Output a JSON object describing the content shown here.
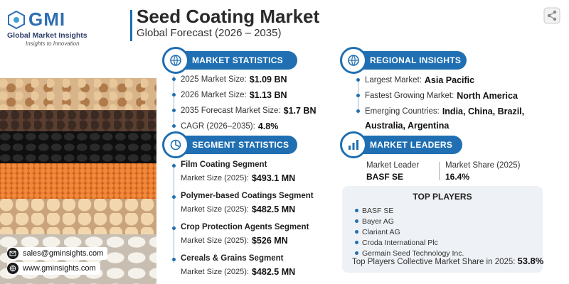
{
  "header": {
    "logo_text": "GMI",
    "company": "Global Market Insights",
    "tagline": "Insights to Innovation",
    "title": "Seed Coating Market",
    "subtitle": "Global Forecast (2026 – 2035)"
  },
  "market_statistics": {
    "heading": "MARKET STATISTICS",
    "rows": [
      {
        "label": "2025 Market Size:",
        "value": "$1.09 BN"
      },
      {
        "label": "2026 Market Size:",
        "value": "$1.13 BN"
      },
      {
        "label": "2035 Forecast Market Size:",
        "value": "$1.7 BN"
      },
      {
        "label": "CAGR (2026–2035):",
        "value": "4.8%"
      }
    ]
  },
  "regional_insights": {
    "heading": "REGIONAL INSIGHTS",
    "largest_label": "Largest Market:",
    "largest_value": "Asia Pacific",
    "fastest_label": "Fastest Growing Market:",
    "fastest_value": "North America",
    "emerging_label": "Emerging Countries:",
    "emerging_value_1": "India, China, Brazil,",
    "emerging_value_2": "Australia, Argentina"
  },
  "segment_statistics": {
    "heading": "SEGMENT STATISTICS",
    "items": [
      {
        "name": "Film Coating Segment",
        "label": "Market Size (2025):",
        "value": "$493.1 MN"
      },
      {
        "name": "Polymer-based Coatings Segment",
        "label": "Market Size (2025):",
        "value": "$482.5 MN"
      },
      {
        "name": "Crop Protection Agents Segment",
        "label": "Market Size (2025):",
        "value": "$526 MN"
      },
      {
        "name": "Cereals & Grains Segment",
        "label": "Market Size (2025):",
        "value": "$482.5 MN"
      }
    ]
  },
  "market_leaders": {
    "heading": "MARKET LEADERS",
    "leader_label": "Market Leader",
    "leader_value": "BASF SE",
    "share_label": "Market Share (2025)",
    "share_value": "16.4%"
  },
  "top_players": {
    "title": "TOP PLAYERS",
    "players": [
      "BASF SE",
      "Bayer AG",
      "Clariant AG",
      "Croda International Plc",
      "Germain Seed Technology Inc."
    ],
    "share_label": "Top Players Collective Market Share in 2025:",
    "share_value": "53.8%"
  },
  "contact": {
    "email": "sales@gminsights.com",
    "website": "www.gminsights.com"
  },
  "colors": {
    "accent": "#1f6fb2",
    "logo_blue": "#2f6eb3"
  }
}
